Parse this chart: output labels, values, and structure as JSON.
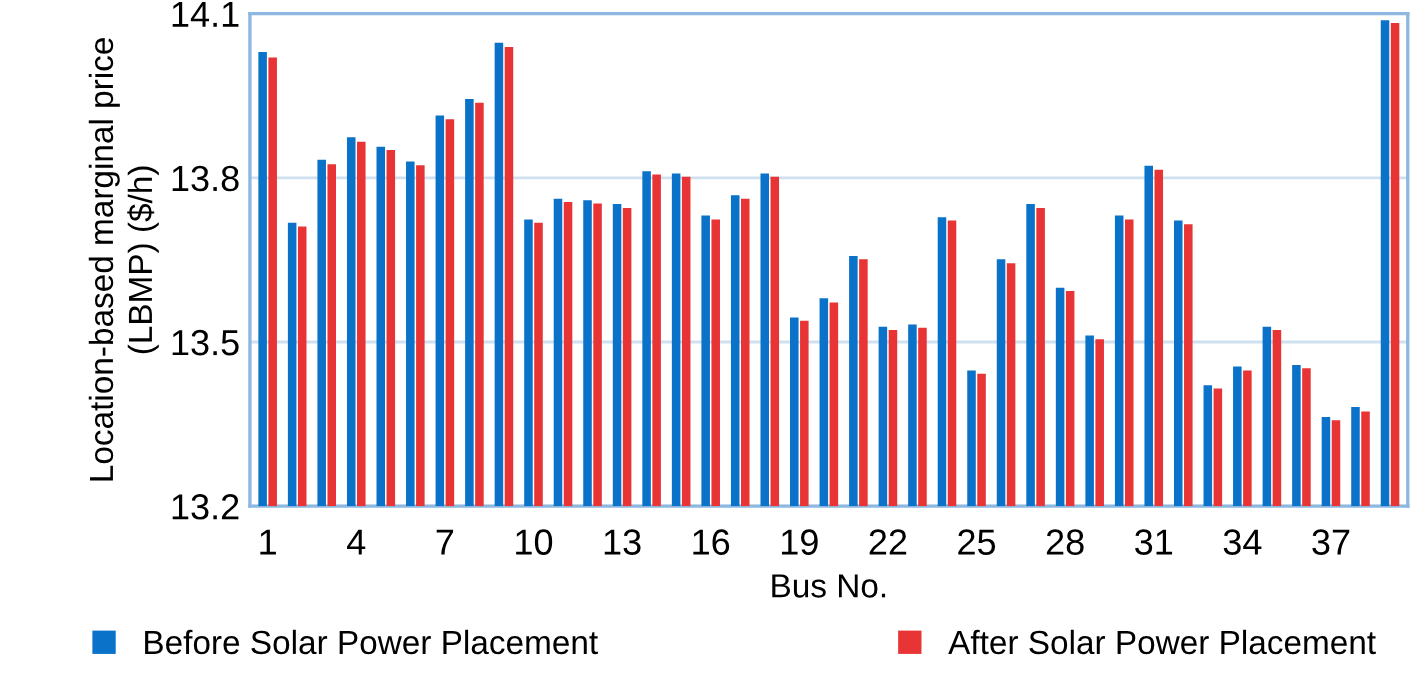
{
  "chart_data": {
    "type": "bar",
    "xlabel": "Bus No.",
    "ylabel": "Location-based marginal price\n(LBMP) ($/h)",
    "categories": [
      "1",
      null,
      null,
      "4",
      null,
      null,
      "7",
      null,
      null,
      "10",
      null,
      null,
      "13",
      null,
      null,
      "16",
      null,
      null,
      "19",
      null,
      null,
      "22",
      null,
      null,
      "25",
      null,
      null,
      "28",
      null,
      null,
      "31",
      null,
      null,
      "34",
      null,
      null,
      "37",
      null,
      null
    ],
    "series": [
      {
        "name": "Before Solar Power Placement",
        "color": "#0a72c8",
        "values": [
          14.03,
          13.718,
          13.833,
          13.874,
          13.857,
          13.83,
          13.914,
          13.944,
          14.047,
          13.724,
          13.762,
          13.759,
          13.752,
          13.812,
          13.808,
          13.731,
          13.768,
          13.808,
          13.545,
          13.58,
          13.657,
          13.528,
          13.532,
          13.728,
          13.448,
          13.651,
          13.752,
          13.599,
          13.512,
          13.731,
          13.822,
          13.722,
          13.421,
          13.455,
          13.528,
          13.458,
          13.363,
          13.381,
          14.088
        ]
      },
      {
        "name": "After Solar Power Placement",
        "color": "#e83434",
        "values": [
          14.02,
          13.711,
          13.825,
          13.866,
          13.851,
          13.823,
          13.907,
          13.937,
          14.039,
          13.718,
          13.756,
          13.753,
          13.745,
          13.806,
          13.802,
          13.724,
          13.762,
          13.802,
          13.539,
          13.572,
          13.651,
          13.522,
          13.526,
          13.722,
          13.442,
          13.644,
          13.745,
          13.593,
          13.505,
          13.724,
          13.815,
          13.715,
          13.415,
          13.448,
          13.522,
          13.452,
          13.357,
          13.373,
          14.083
        ]
      }
    ],
    "ylim": [
      13.2,
      14.1
    ],
    "yticks": [
      13.2,
      13.5,
      13.8,
      14.1
    ],
    "grid": "y",
    "legend": "bottom"
  }
}
